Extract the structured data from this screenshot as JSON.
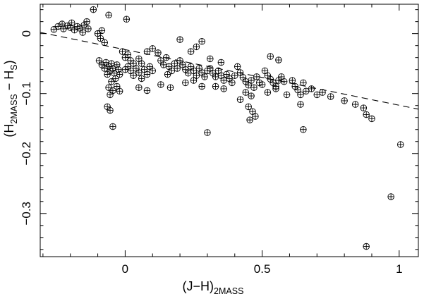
{
  "figure": {
    "background": "#ffffff",
    "ink_color": "#000000"
  },
  "chart_data": {
    "type": "scatter",
    "title": "",
    "xlabel": "(J-H)_2MASS",
    "ylabel": "(H_2MASS - H_S)",
    "xlabel_parts": [
      {
        "text": "(J−H)",
        "sub": false
      },
      {
        "text": "2MASS",
        "sub": true
      }
    ],
    "ylabel_parts": [
      {
        "text": "(H",
        "sub": false
      },
      {
        "text": "2MASS",
        "sub": true
      },
      {
        "text": " − H",
        "sub": false
      },
      {
        "text": "S",
        "sub": true
      },
      {
        "text": ")",
        "sub": false
      }
    ],
    "xlim": [
      -0.31,
      1.07
    ],
    "ylim": [
      -0.372,
      0.049
    ],
    "xticks": [
      0,
      0.5,
      1
    ],
    "xtick_labels": [
      "0",
      "0.5",
      "1"
    ],
    "yticks": [
      0,
      -0.1,
      -0.2,
      -0.3
    ],
    "ytick_labels": [
      "0",
      "−0.1",
      "−0.2",
      "−0.3"
    ],
    "x_minor_step": 0.1,
    "y_minor_step": 0.02,
    "grid": false,
    "legend": "none",
    "marker": "circled-plus",
    "fit_line": {
      "style": "dashed",
      "x1": -0.31,
      "y1": 0.002,
      "x2": 1.07,
      "y2": -0.126
    },
    "points": [
      [
        -0.26,
        0.007
      ],
      [
        -0.245,
        0.012
      ],
      [
        -0.23,
        0.016
      ],
      [
        -0.225,
        0.008
      ],
      [
        -0.21,
        0.013
      ],
      [
        -0.2,
        0.01
      ],
      [
        -0.195,
        0.018
      ],
      [
        -0.185,
        0.006
      ],
      [
        -0.175,
        0.012
      ],
      [
        -0.165,
        0.009
      ],
      [
        -0.155,
        0.002
      ],
      [
        -0.15,
        0.014
      ],
      [
        -0.14,
        0.02
      ],
      [
        -0.135,
        0.008
      ],
      [
        -0.116,
        0.04
      ],
      [
        -0.06,
        0.031
      ],
      [
        0.005,
        0.024
      ],
      [
        -0.1,
        0.0
      ],
      [
        -0.09,
        -0.008
      ],
      [
        -0.085,
        0.005
      ],
      [
        -0.075,
        -0.015
      ],
      [
        -0.095,
        -0.045
      ],
      [
        -0.085,
        -0.052
      ],
      [
        -0.075,
        -0.058
      ],
      [
        -0.07,
        -0.048
      ],
      [
        -0.06,
        -0.055
      ],
      [
        -0.055,
        -0.062
      ],
      [
        -0.05,
        -0.05
      ],
      [
        -0.045,
        -0.058
      ],
      [
        -0.065,
        -0.068
      ],
      [
        -0.04,
        -0.066
      ],
      [
        -0.03,
        -0.052
      ],
      [
        -0.025,
        -0.06
      ],
      [
        -0.02,
        -0.068
      ],
      [
        -0.035,
        -0.075
      ],
      [
        -0.05,
        -0.08
      ],
      [
        -0.06,
        -0.09
      ],
      [
        -0.045,
        -0.095
      ],
      [
        -0.03,
        -0.088
      ],
      [
        -0.02,
        -0.096
      ],
      [
        -0.055,
        -0.102
      ],
      [
        -0.065,
        -0.122
      ],
      [
        -0.055,
        -0.128
      ],
      [
        -0.045,
        -0.155
      ],
      [
        -0.01,
        -0.03
      ],
      [
        0.0,
        -0.04
      ],
      [
        0.01,
        -0.035
      ],
      [
        0.02,
        -0.045
      ],
      [
        0.0,
        -0.06
      ],
      [
        0.01,
        -0.055
      ],
      [
        0.02,
        -0.062
      ],
      [
        0.03,
        -0.05
      ],
      [
        0.04,
        -0.058
      ],
      [
        0.05,
        -0.065
      ],
      [
        0.03,
        -0.07
      ],
      [
        0.05,
        -0.042
      ],
      [
        0.06,
        -0.05
      ],
      [
        0.07,
        -0.06
      ],
      [
        0.08,
        -0.068
      ],
      [
        0.06,
        -0.075
      ],
      [
        0.09,
        -0.055
      ],
      [
        0.1,
        -0.062
      ],
      [
        0.08,
        -0.03
      ],
      [
        0.1,
        -0.025
      ],
      [
        0.05,
        -0.09
      ],
      [
        0.08,
        -0.095
      ],
      [
        0.12,
        -0.032
      ],
      [
        0.13,
        -0.045
      ],
      [
        0.14,
        -0.052
      ],
      [
        0.15,
        -0.04
      ],
      [
        0.16,
        -0.055
      ],
      [
        0.17,
        -0.062
      ],
      [
        0.155,
        -0.068
      ],
      [
        0.18,
        -0.05
      ],
      [
        0.19,
        -0.058
      ],
      [
        0.2,
        -0.045
      ],
      [
        0.13,
        -0.085
      ],
      [
        0.165,
        -0.09
      ],
      [
        0.2,
        -0.01
      ],
      [
        0.28,
        -0.013
      ],
      [
        0.21,
        -0.052
      ],
      [
        0.22,
        -0.06
      ],
      [
        0.23,
        -0.066
      ],
      [
        0.24,
        -0.055
      ],
      [
        0.25,
        -0.062
      ],
      [
        0.26,
        -0.07
      ],
      [
        0.27,
        -0.058
      ],
      [
        0.28,
        -0.065
      ],
      [
        0.29,
        -0.072
      ],
      [
        0.25,
        -0.078
      ],
      [
        0.22,
        -0.082
      ],
      [
        0.28,
        -0.088
      ],
      [
        0.3,
        -0.062
      ],
      [
        0.24,
        -0.03
      ],
      [
        0.26,
        -0.022
      ],
      [
        0.3,
        -0.165
      ],
      [
        0.31,
        -0.058
      ],
      [
        0.32,
        -0.066
      ],
      [
        0.33,
        -0.072
      ],
      [
        0.34,
        -0.062
      ],
      [
        0.35,
        -0.07
      ],
      [
        0.36,
        -0.078
      ],
      [
        0.37,
        -0.068
      ],
      [
        0.38,
        -0.075
      ],
      [
        0.39,
        -0.082
      ],
      [
        0.33,
        -0.088
      ],
      [
        0.36,
        -0.092
      ],
      [
        0.31,
        -0.042
      ],
      [
        0.35,
        -0.048
      ],
      [
        0.4,
        -0.07
      ],
      [
        0.41,
        -0.055
      ],
      [
        0.42,
        -0.065
      ],
      [
        0.43,
        -0.073
      ],
      [
        0.44,
        -0.08
      ],
      [
        0.45,
        -0.086
      ],
      [
        0.46,
        -0.078
      ],
      [
        0.47,
        -0.09
      ],
      [
        0.48,
        -0.072
      ],
      [
        0.49,
        -0.082
      ],
      [
        0.44,
        -0.098
      ],
      [
        0.46,
        -0.104
      ],
      [
        0.42,
        -0.11
      ],
      [
        0.45,
        -0.122
      ],
      [
        0.465,
        -0.13
      ],
      [
        0.475,
        -0.138
      ],
      [
        0.455,
        -0.144
      ],
      [
        0.5,
        -0.085
      ],
      [
        0.51,
        -0.062
      ],
      [
        0.52,
        -0.07
      ],
      [
        0.53,
        -0.076
      ],
      [
        0.54,
        -0.082
      ],
      [
        0.55,
        -0.088
      ],
      [
        0.56,
        -0.078
      ],
      [
        0.57,
        -0.072
      ],
      [
        0.58,
        -0.08
      ],
      [
        0.55,
        -0.092
      ],
      [
        0.52,
        -0.098
      ],
      [
        0.59,
        -0.102
      ],
      [
        0.53,
        -0.038
      ],
      [
        0.56,
        -0.044
      ],
      [
        0.61,
        -0.078
      ],
      [
        0.62,
        -0.088
      ],
      [
        0.63,
        -0.094
      ],
      [
        0.64,
        -0.102
      ],
      [
        0.65,
        -0.082
      ],
      [
        0.66,
        -0.096
      ],
      [
        0.64,
        -0.118
      ],
      [
        0.65,
        -0.16
      ],
      [
        0.68,
        -0.092
      ],
      [
        0.7,
        -0.102
      ],
      [
        0.72,
        -0.098
      ],
      [
        0.75,
        -0.105
      ],
      [
        0.8,
        -0.112
      ],
      [
        0.84,
        -0.118
      ],
      [
        0.87,
        -0.124
      ],
      [
        0.88,
        -0.135
      ],
      [
        0.9,
        -0.142
      ],
      [
        0.88,
        -0.355
      ],
      [
        0.97,
        -0.272
      ],
      [
        1.005,
        -0.185
      ]
    ]
  }
}
